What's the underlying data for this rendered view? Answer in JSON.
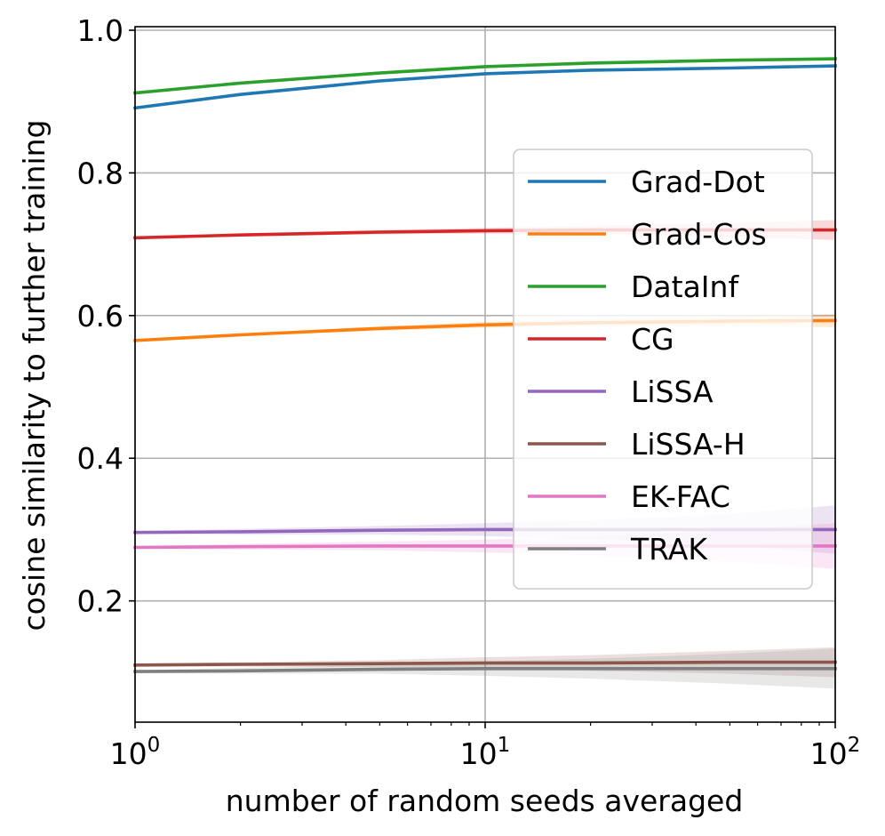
{
  "chart_data": {
    "type": "line",
    "title": "",
    "xlabel": "number of random seeds averaged",
    "ylabel": "cosine similarity to further training",
    "xscale": "log",
    "xlim": [
      1,
      100
    ],
    "ylim": [
      0.03,
      1.005
    ],
    "x": [
      1,
      2,
      5,
      10,
      20,
      50,
      100
    ],
    "xticks": [
      {
        "value": 1,
        "base": "10",
        "exp": "0"
      },
      {
        "value": 10,
        "base": "10",
        "exp": "1"
      },
      {
        "value": 100,
        "base": "10",
        "exp": "2"
      }
    ],
    "yticks": [
      {
        "value": 0.2,
        "label": "0.2"
      },
      {
        "value": 0.4,
        "label": "0.4"
      },
      {
        "value": 0.6,
        "label": "0.6"
      },
      {
        "value": 0.8,
        "label": "0.8"
      },
      {
        "value": 1.0,
        "label": "1.0"
      }
    ],
    "grid": true,
    "legend_position": "center-right",
    "series": [
      {
        "name": "Grad-Dot",
        "color": "#1f77b4",
        "values": [
          0.891,
          0.91,
          0.929,
          0.939,
          0.944,
          0.947,
          0.95
        ],
        "band": [
          0.001,
          0.001,
          0.001,
          0.001,
          0.001,
          0.001,
          0.001
        ]
      },
      {
        "name": "Grad-Cos",
        "color": "#ff7f0e",
        "values": [
          0.565,
          0.573,
          0.582,
          0.587,
          0.59,
          0.592,
          0.593
        ],
        "band": [
          0.001,
          0.002,
          0.003,
          0.004,
          0.005,
          0.007,
          0.009
        ]
      },
      {
        "name": "DataInf",
        "color": "#2ca02c",
        "values": [
          0.912,
          0.926,
          0.94,
          0.949,
          0.954,
          0.958,
          0.96
        ],
        "band": [
          0.001,
          0.001,
          0.001,
          0.001,
          0.001,
          0.001,
          0.001
        ]
      },
      {
        "name": "CG",
        "color": "#d62728",
        "values": [
          0.709,
          0.713,
          0.717,
          0.719,
          0.72,
          0.72,
          0.72
        ],
        "band": [
          0.001,
          0.002,
          0.003,
          0.004,
          0.006,
          0.01,
          0.014
        ]
      },
      {
        "name": "LiSSA",
        "color": "#9467bd",
        "values": [
          0.296,
          0.297,
          0.299,
          0.3,
          0.3,
          0.3,
          0.3
        ],
        "band": [
          0.002,
          0.004,
          0.006,
          0.009,
          0.013,
          0.022,
          0.034
        ]
      },
      {
        "name": "LiSSA-H",
        "color": "#8c564b",
        "values": [
          0.11,
          0.111,
          0.112,
          0.113,
          0.113,
          0.114,
          0.114
        ],
        "band": [
          0.002,
          0.003,
          0.005,
          0.008,
          0.011,
          0.016,
          0.021
        ]
      },
      {
        "name": "EK-FAC",
        "color": "#e377c2",
        "values": [
          0.275,
          0.276,
          0.277,
          0.277,
          0.277,
          0.277,
          0.277
        ],
        "band": [
          0.002,
          0.004,
          0.006,
          0.009,
          0.013,
          0.022,
          0.032
        ]
      },
      {
        "name": "TRAK",
        "color": "#7f7f7f",
        "values": [
          0.101,
          0.102,
          0.104,
          0.105,
          0.105,
          0.105,
          0.105
        ],
        "band": [
          0.002,
          0.004,
          0.006,
          0.01,
          0.014,
          0.021,
          0.028
        ]
      }
    ]
  }
}
